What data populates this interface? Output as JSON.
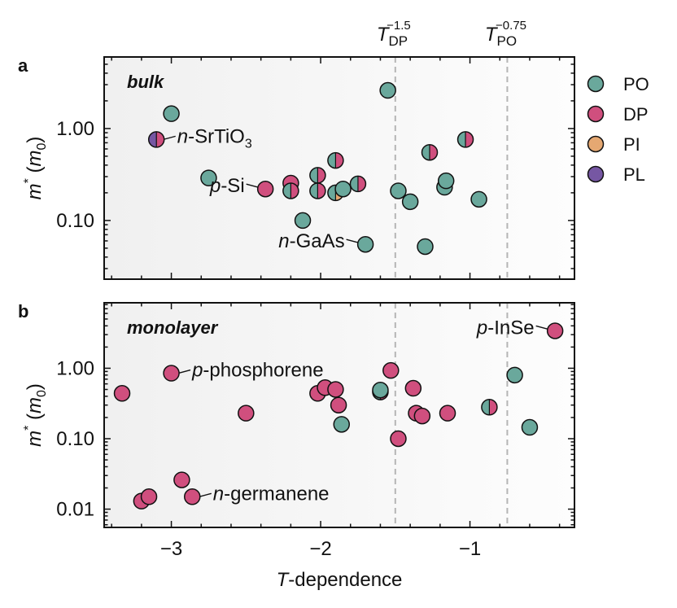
{
  "chart_data": {
    "type": "scatter",
    "xlabel": {
      "italic": "T",
      "rest": "-dependence"
    },
    "ylabel": {
      "main": "m",
      "sup": "*",
      "unit_open": " (",
      "unit_main": "m",
      "unit_sub": "0",
      "unit_close": ")"
    },
    "xlim": [
      -3.45,
      -0.3
    ],
    "xticks": [
      -3,
      -2,
      -1
    ],
    "xtick_labels": [
      "−3",
      "−2",
      "−1"
    ],
    "reference_lines": [
      {
        "x": -1.5,
        "label_main": "T",
        "label_sub": "DP",
        "label_sup": "−1.5"
      },
      {
        "x": -0.75,
        "label_main": "T",
        "label_sub": "PO",
        "label_sup": "−0.75"
      }
    ],
    "legend": [
      {
        "name": "PO",
        "color": "#6aa89c"
      },
      {
        "name": "DP",
        "color": "#d04f7e"
      },
      {
        "name": "PI",
        "color": "#e5a872"
      },
      {
        "name": "PL",
        "color": "#7657a3"
      }
    ],
    "panels": [
      {
        "tag": "a",
        "title": "bulk",
        "ylim": [
          0.023,
          6.0
        ],
        "yticks": [
          0.1,
          1.0
        ],
        "ytick_labels": [
          "0.10",
          "1.00"
        ],
        "points": [
          {
            "x": -3.1,
            "y": 0.76,
            "types": [
              "PL",
              "DP"
            ]
          },
          {
            "x": -3.0,
            "y": 1.45,
            "types": [
              "PO"
            ]
          },
          {
            "x": -2.75,
            "y": 0.29,
            "types": [
              "PO"
            ]
          },
          {
            "x": -2.37,
            "y": 0.22,
            "types": [
              "DP"
            ]
          },
          {
            "x": -2.2,
            "y": 0.255,
            "types": [
              "DP"
            ]
          },
          {
            "x": -2.2,
            "y": 0.21,
            "types": [
              "PO",
              "DP"
            ]
          },
          {
            "x": -2.12,
            "y": 0.1,
            "types": [
              "PO"
            ]
          },
          {
            "x": -2.02,
            "y": 0.31,
            "types": [
              "PO",
              "DP"
            ]
          },
          {
            "x": -2.02,
            "y": 0.21,
            "types": [
              "PO",
              "DP"
            ]
          },
          {
            "x": -1.9,
            "y": 0.45,
            "types": [
              "PO",
              "DP"
            ]
          },
          {
            "x": -1.9,
            "y": 0.2,
            "types": [
              "PO",
              "PI"
            ]
          },
          {
            "x": -1.85,
            "y": 0.22,
            "types": [
              "PO"
            ]
          },
          {
            "x": -1.75,
            "y": 0.25,
            "types": [
              "PO",
              "DP"
            ]
          },
          {
            "x": -1.7,
            "y": 0.055,
            "types": [
              "PO"
            ]
          },
          {
            "x": -1.55,
            "y": 2.6,
            "types": [
              "PO"
            ]
          },
          {
            "x": -1.48,
            "y": 0.21,
            "types": [
              "PO"
            ]
          },
          {
            "x": -1.4,
            "y": 0.16,
            "types": [
              "PO"
            ]
          },
          {
            "x": -1.3,
            "y": 0.052,
            "types": [
              "PO"
            ]
          },
          {
            "x": -1.27,
            "y": 0.55,
            "types": [
              "PO",
              "DP"
            ]
          },
          {
            "x": -1.17,
            "y": 0.23,
            "types": [
              "PO"
            ]
          },
          {
            "x": -1.16,
            "y": 0.27,
            "types": [
              "PO"
            ]
          },
          {
            "x": -1.03,
            "y": 0.76,
            "types": [
              "PO",
              "DP"
            ]
          },
          {
            "x": -0.94,
            "y": 0.17,
            "types": [
              "PO"
            ]
          }
        ],
        "annotations": [
          {
            "italic": "n",
            "text": "-SrTiO",
            "sub": "3",
            "px": -3.1,
            "py": 0.76,
            "side": "right"
          },
          {
            "italic": "p",
            "text": "-Si",
            "sub": "",
            "px": -2.37,
            "py": 0.22,
            "side": "left"
          },
          {
            "italic": "n",
            "text": "-GaAs",
            "sub": "",
            "px": -1.7,
            "py": 0.055,
            "side": "left"
          }
        ]
      },
      {
        "tag": "b",
        "title": "monolayer",
        "ylim": [
          0.0055,
          8.5
        ],
        "yticks": [
          0.01,
          0.1,
          1.0
        ],
        "ytick_labels": [
          "0.01",
          "0.10",
          "1.00"
        ],
        "points": [
          {
            "x": -3.33,
            "y": 0.44,
            "types": [
              "DP"
            ]
          },
          {
            "x": -3.2,
            "y": 0.013,
            "types": [
              "DP"
            ]
          },
          {
            "x": -3.15,
            "y": 0.015,
            "types": [
              "DP"
            ]
          },
          {
            "x": -3.0,
            "y": 0.85,
            "types": [
              "DP"
            ]
          },
          {
            "x": -2.93,
            "y": 0.026,
            "types": [
              "DP"
            ]
          },
          {
            "x": -2.86,
            "y": 0.015,
            "types": [
              "DP"
            ]
          },
          {
            "x": -2.5,
            "y": 0.23,
            "types": [
              "DP"
            ]
          },
          {
            "x": -2.02,
            "y": 0.44,
            "types": [
              "DP"
            ]
          },
          {
            "x": -1.97,
            "y": 0.53,
            "types": [
              "DP"
            ]
          },
          {
            "x": -1.9,
            "y": 0.5,
            "types": [
              "DP"
            ]
          },
          {
            "x": -1.88,
            "y": 0.3,
            "types": [
              "DP"
            ]
          },
          {
            "x": -1.86,
            "y": 0.16,
            "types": [
              "PO"
            ]
          },
          {
            "x": -1.6,
            "y": 0.46,
            "types": [
              "PO",
              "DP"
            ]
          },
          {
            "x": -1.6,
            "y": 0.49,
            "types": [
              "PO"
            ]
          },
          {
            "x": -1.53,
            "y": 0.93,
            "types": [
              "DP"
            ]
          },
          {
            "x": -1.48,
            "y": 0.1,
            "types": [
              "DP"
            ]
          },
          {
            "x": -1.38,
            "y": 0.52,
            "types": [
              "DP"
            ]
          },
          {
            "x": -1.36,
            "y": 0.23,
            "types": [
              "DP"
            ]
          },
          {
            "x": -1.32,
            "y": 0.21,
            "types": [
              "DP"
            ]
          },
          {
            "x": -1.15,
            "y": 0.23,
            "types": [
              "DP"
            ]
          },
          {
            "x": -0.87,
            "y": 0.28,
            "types": [
              "PO",
              "DP"
            ]
          },
          {
            "x": -0.7,
            "y": 0.8,
            "types": [
              "PO"
            ]
          },
          {
            "x": -0.6,
            "y": 0.145,
            "types": [
              "PO"
            ]
          },
          {
            "x": -0.43,
            "y": 3.4,
            "types": [
              "DP"
            ]
          }
        ],
        "annotations": [
          {
            "italic": "p",
            "text": "-phosphorene",
            "sub": "",
            "px": -3.0,
            "py": 0.85,
            "side": "right"
          },
          {
            "italic": "n",
            "text": "-germanene",
            "sub": "",
            "px": -2.86,
            "py": 0.015,
            "side": "right"
          },
          {
            "italic": "p",
            "text": "-InSe",
            "sub": "",
            "px": -0.43,
            "py": 3.4,
            "side": "left"
          }
        ]
      }
    ]
  }
}
